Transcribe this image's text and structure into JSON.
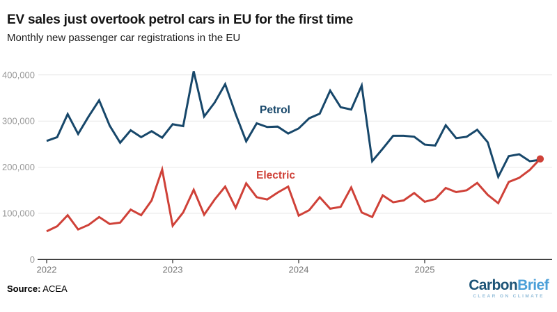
{
  "header": {
    "title": "EV sales just overtook petrol cars in EU for the first time",
    "subtitle": "Monthly new passenger car registrations in the EU"
  },
  "footer": {
    "source_label": "Source:",
    "source_value": " ACEA"
  },
  "logo": {
    "part1": "Carbon",
    "part2": "Brief",
    "tagline": "CLEAR ON CLIMATE",
    "color_part1": "#1d5477",
    "color_part2": "#4a9fd8",
    "color_tagline": "#93bdd9"
  },
  "chart_data": {
    "type": "line",
    "title": "EV sales just overtook petrol cars in EU for the first time",
    "subtitle": "Monthly new passenger car registrations in the EU",
    "xlabel": "",
    "ylabel": "",
    "ylim": [
      0,
      420000
    ],
    "grid": "horizontal",
    "legend": "inline-labels",
    "y_ticks": [
      0,
      100000,
      200000,
      300000,
      400000
    ],
    "y_tick_labels": [
      "0",
      "100,000",
      "200,000",
      "300,000",
      "400,000"
    ],
    "x_tick_labels": [
      "2022",
      "2023",
      "2024",
      "2025"
    ],
    "x_tick_month_index": [
      0,
      12,
      24,
      36
    ],
    "x": [
      "Jan 2022",
      "Feb 2022",
      "Mar 2022",
      "Apr 2022",
      "May 2022",
      "Jun 2022",
      "Jul 2022",
      "Aug 2022",
      "Sep 2022",
      "Oct 2022",
      "Nov 2022",
      "Dec 2022",
      "Jan 2023",
      "Feb 2023",
      "Mar 2023",
      "Apr 2023",
      "May 2023",
      "Jun 2023",
      "Jul 2023",
      "Aug 2023",
      "Sep 2023",
      "Oct 2023",
      "Nov 2023",
      "Dec 2023",
      "Jan 2024",
      "Feb 2024",
      "Mar 2024",
      "Apr 2024",
      "May 2024",
      "Jun 2024",
      "Jul 2024",
      "Aug 2024",
      "Sep 2024",
      "Oct 2024",
      "Nov 2024",
      "Dec 2024",
      "Jan 2025",
      "Feb 2025",
      "Mar 2025",
      "Apr 2025",
      "May 2025",
      "Jun 2025",
      "Jul 2025",
      "Aug 2025",
      "Sep 2025",
      "Oct 2025",
      "Nov 2025",
      "Dec 2025"
    ],
    "series": [
      {
        "name": "Petrol",
        "color": "#17476a",
        "end_marker": false,
        "values": [
          257000,
          265000,
          315000,
          272000,
          310000,
          345000,
          290000,
          253000,
          280000,
          265000,
          278000,
          264000,
          293000,
          289000,
          408000,
          310000,
          340000,
          380000,
          315000,
          256000,
          295000,
          287000,
          288000,
          273000,
          284000,
          306000,
          316000,
          366000,
          330000,
          325000,
          377000,
          213000,
          240000,
          268000,
          268000,
          266000,
          249000,
          247000,
          291000,
          263000,
          266000,
          281000,
          254000,
          179000,
          224000,
          228000,
          213000,
          216000
        ]
      },
      {
        "name": "Electric",
        "color": "#cf4138",
        "end_marker": true,
        "values": [
          61000,
          72000,
          96000,
          65000,
          75000,
          92000,
          77000,
          80000,
          108000,
          96000,
          128000,
          195000,
          73000,
          102000,
          151000,
          97000,
          130000,
          158000,
          112000,
          165000,
          135000,
          130000,
          145000,
          158000,
          95000,
          107000,
          135000,
          110000,
          114000,
          156000,
          102000,
          92000,
          139000,
          124000,
          128000,
          144000,
          125000,
          131000,
          155000,
          146000,
          150000,
          166000,
          140000,
          122000,
          168000,
          177000,
          194000,
          218000
        ]
      }
    ]
  }
}
